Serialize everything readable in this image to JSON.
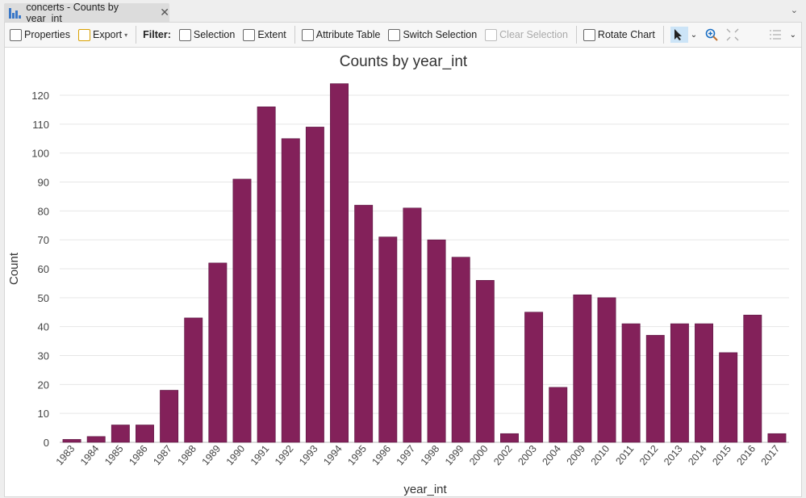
{
  "tab": {
    "title": "concerts - Counts by year_int",
    "close": "✕",
    "overflow": "⌄"
  },
  "toolbar": {
    "properties": "Properties",
    "export": "Export",
    "export_caret": "▾",
    "filter": "Filter:",
    "selection": "Selection",
    "extent": "Extent",
    "attribute_table": "Attribute Table",
    "switch_selection": "Switch Selection",
    "clear_selection": "Clear Selection",
    "rotate_chart": "Rotate Chart",
    "caret": "⌄"
  },
  "colors": {
    "bar": "#83215a",
    "grid": "#e6e6e6"
  },
  "chart_data": {
    "type": "bar",
    "title": "Counts by year_int",
    "xlabel": "year_int",
    "ylabel": "Count",
    "ylim": [
      0,
      125
    ],
    "yticks": [
      0,
      10,
      20,
      30,
      40,
      50,
      60,
      70,
      80,
      90,
      100,
      110,
      120
    ],
    "grid": true,
    "categories": [
      "1983",
      "1984",
      "1985",
      "1986",
      "1987",
      "1988",
      "1989",
      "1990",
      "1991",
      "1992",
      "1993",
      "1994",
      "1995",
      "1996",
      "1997",
      "1998",
      "1999",
      "2000",
      "2002",
      "2003",
      "2004",
      "2009",
      "2010",
      "2011",
      "2012",
      "2013",
      "2014",
      "2015",
      "2016",
      "2017"
    ],
    "values": [
      1,
      2,
      6,
      6,
      18,
      43,
      62,
      91,
      116,
      105,
      109,
      124,
      82,
      71,
      81,
      70,
      64,
      56,
      3,
      45,
      19,
      51,
      50,
      41,
      37,
      41,
      41,
      31,
      44,
      3
    ]
  }
}
